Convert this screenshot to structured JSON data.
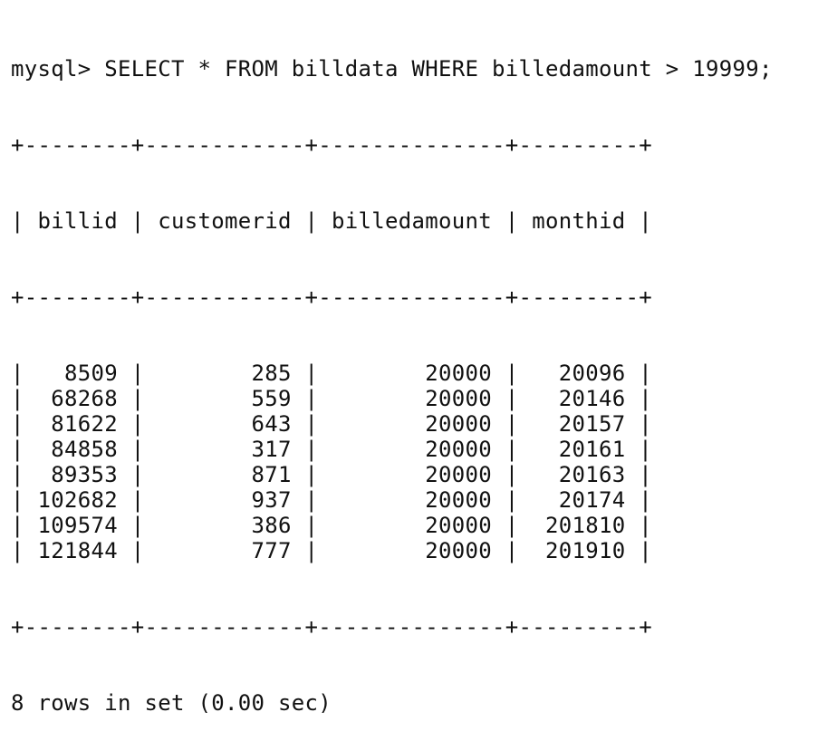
{
  "prompt": "mysql> ",
  "query": "SELECT * FROM billdata WHERE billedamount > 19999;",
  "table": {
    "columns": [
      "billid",
      "customerid",
      "billedamount",
      "monthid"
    ],
    "rows": [
      [
        "8509",
        "285",
        "20000",
        "20096"
      ],
      [
        "68268",
        "559",
        "20000",
        "20146"
      ],
      [
        "81622",
        "643",
        "20000",
        "20157"
      ],
      [
        "84858",
        "317",
        "20000",
        "20161"
      ],
      [
        "89353",
        "871",
        "20000",
        "20163"
      ],
      [
        "102682",
        "937",
        "20000",
        "20174"
      ],
      [
        "109574",
        "386",
        "20000",
        "201810"
      ],
      [
        "121844",
        "777",
        "20000",
        "201910"
      ]
    ]
  },
  "result_summary": "8 rows in set (0.00 sec)"
}
